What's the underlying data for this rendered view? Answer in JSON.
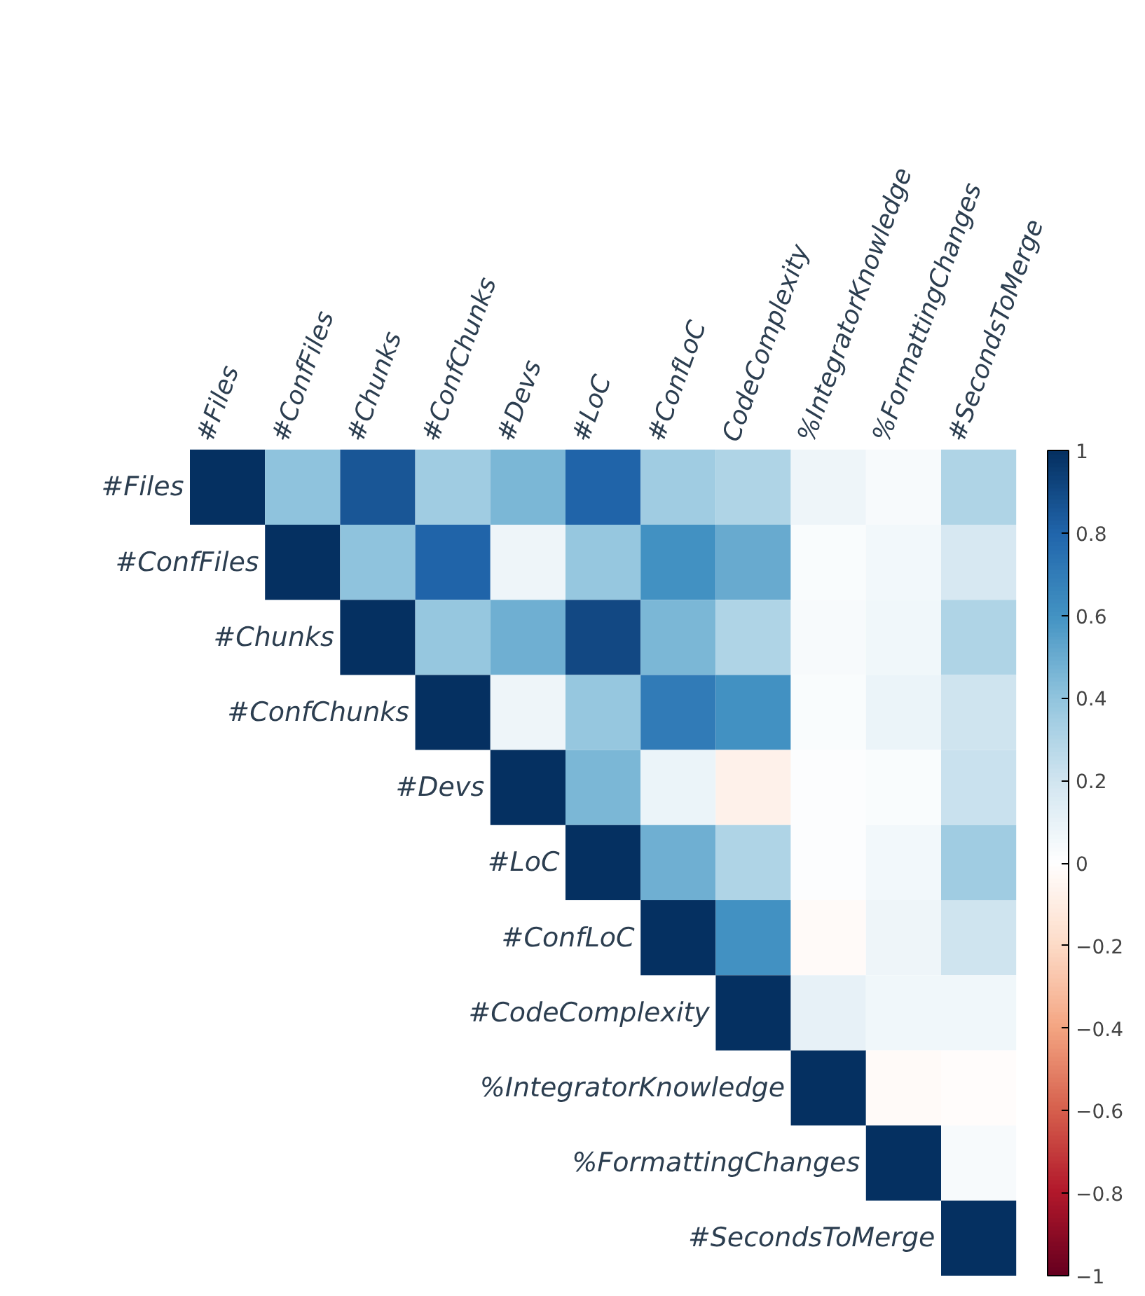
{
  "chart_data": {
    "type": "heatmap",
    "categories": [
      "#Files",
      "#ConfFiles",
      "#Chunks",
      "#ConfChunks",
      "#Devs",
      "#LoC",
      "#ConfLoC",
      "CodeComplexity",
      "%IntegratorKnowledge",
      "%FormattingChanges",
      "#SecondsToMerge"
    ],
    "y_categories": [
      "#Files",
      "#ConfFiles",
      "#Chunks",
      "#ConfChunks",
      "#Devs",
      "#LoC",
      "#ConfLoC",
      "#CodeComplexity",
      "%IntegratorKnowledge",
      "%FormattingChanges",
      "#SecondsToMerge"
    ],
    "cells": [
      [
        1,
        0.4,
        0.85,
        0.35,
        0.45,
        0.8,
        0.35,
        0.3,
        0.07,
        0.03,
        0.3
      ],
      [
        null,
        1,
        0.4,
        0.8,
        0.07,
        0.38,
        0.6,
        0.5,
        0.02,
        0.05,
        0.18
      ],
      [
        null,
        null,
        1,
        0.38,
        0.48,
        0.9,
        0.45,
        0.3,
        0.03,
        0.06,
        0.3
      ],
      [
        null,
        null,
        null,
        1,
        0.07,
        0.38,
        0.7,
        0.6,
        0.02,
        0.08,
        0.2
      ],
      [
        null,
        null,
        null,
        null,
        1,
        0.45,
        0.08,
        -0.08,
        0.01,
        0.02,
        0.22
      ],
      [
        null,
        null,
        null,
        null,
        null,
        1,
        0.48,
        0.3,
        0.01,
        0.05,
        0.35
      ],
      [
        null,
        null,
        null,
        null,
        null,
        null,
        1,
        0.6,
        -0.03,
        0.07,
        0.2
      ],
      [
        null,
        null,
        null,
        null,
        null,
        null,
        null,
        1,
        0.1,
        0.06,
        0.06
      ],
      [
        null,
        null,
        null,
        null,
        null,
        null,
        null,
        null,
        1,
        -0.03,
        -0.02
      ],
      [
        null,
        null,
        null,
        null,
        null,
        null,
        null,
        null,
        null,
        1,
        0.03
      ],
      [
        null,
        null,
        null,
        null,
        null,
        null,
        null,
        null,
        null,
        null,
        1
      ]
    ],
    "clim": [
      -1,
      1
    ],
    "cticks": [
      -1,
      -0.8,
      -0.6,
      -0.4,
      -0.2,
      0,
      0.2,
      0.4,
      0.6,
      0.8,
      1
    ],
    "grid": false
  }
}
